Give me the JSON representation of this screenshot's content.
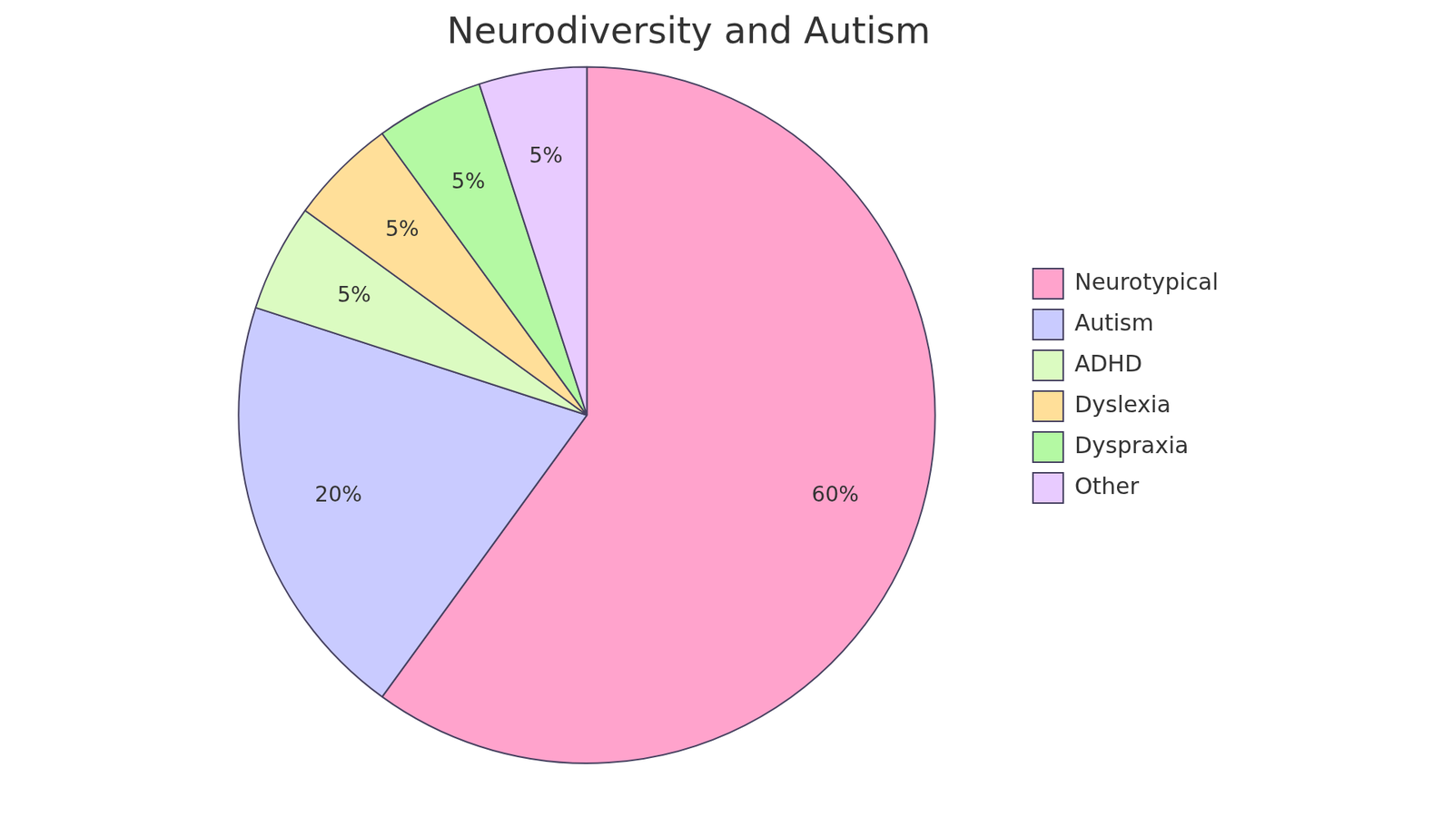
{
  "chart_data": {
    "type": "pie",
    "title": "Neurodiversity and Autism",
    "categories": [
      "Neurotypical",
      "Autism",
      "ADHD",
      "Dyslexia",
      "Dyspraxia",
      "Other"
    ],
    "values": [
      60,
      20,
      5,
      5,
      5,
      5
    ],
    "value_labels": [
      "60%",
      "20%",
      "5%",
      "5%",
      "5%",
      "5%"
    ],
    "colors": [
      "#ffa3cc",
      "#c9cbff",
      "#dbfbc1",
      "#ffdf99",
      "#b4f9a3",
      "#e8cbff"
    ],
    "legend": "right",
    "data_labels": true
  }
}
